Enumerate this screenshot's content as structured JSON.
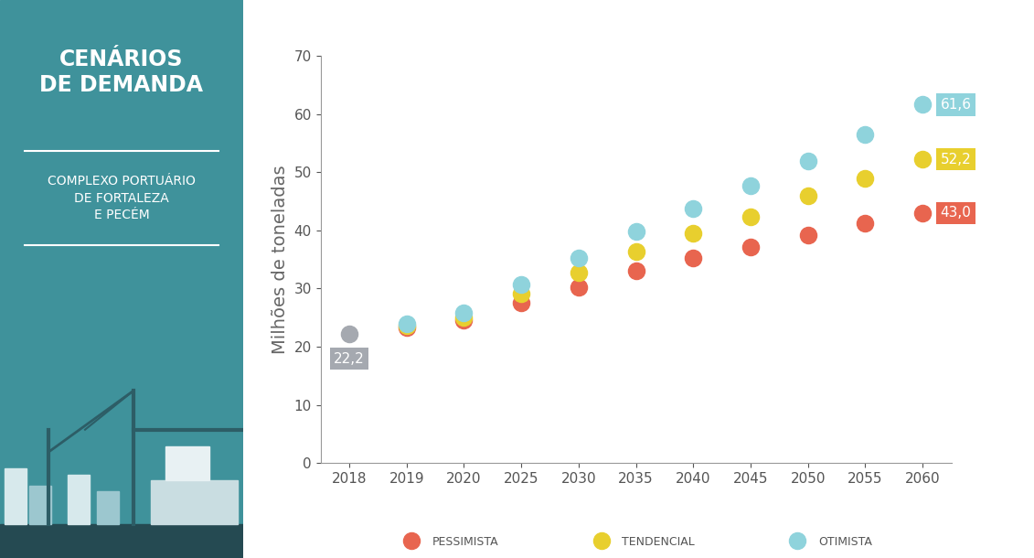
{
  "chart_data": {
    "type": "scatter",
    "ylabel": "Milhões de toneladas",
    "categories": [
      "2018",
      "2019",
      "2020",
      "2025",
      "2030",
      "2035",
      "2040",
      "2045",
      "2050",
      "2055",
      "2060"
    ],
    "ylim": [
      0,
      70
    ],
    "yticks": [
      0,
      10,
      20,
      30,
      40,
      50,
      60,
      70
    ],
    "grid": false,
    "legend": "lower center",
    "data_labels": true,
    "marker": "circle",
    "series": [
      {
        "color": "#a5a9b0",
        "values": [
          22.2,
          null,
          null,
          null,
          null,
          null,
          null,
          null,
          null,
          null,
          null
        ],
        "value_labels": [
          "22,2",
          null,
          null,
          null,
          null,
          null,
          null,
          null,
          null,
          null,
          null
        ]
      },
      {
        "name": "PESSIMISTA",
        "color": "#e8654f",
        "values": [
          null,
          23.3,
          24.5,
          27.6,
          30.2,
          33.0,
          35.2,
          37.2,
          39.2,
          41.2,
          43.0
        ],
        "value_labels": [
          null,
          null,
          null,
          null,
          null,
          null,
          null,
          null,
          null,
          null,
          "43,0"
        ]
      },
      {
        "name": "TENDENCIAL",
        "color": "#e8cf2e",
        "values": [
          null,
          23.6,
          25.0,
          29.2,
          32.7,
          36.4,
          39.5,
          42.3,
          45.9,
          49.0,
          52.2
        ],
        "value_labels": [
          null,
          null,
          null,
          null,
          null,
          null,
          null,
          null,
          null,
          null,
          "52,2"
        ]
      },
      {
        "name": "OTIMISTA",
        "color": "#8fd3dc",
        "values": [
          null,
          23.9,
          25.8,
          30.7,
          35.2,
          39.8,
          43.8,
          47.7,
          52.0,
          56.5,
          61.6
        ],
        "value_labels": [
          null,
          null,
          null,
          null,
          null,
          null,
          null,
          null,
          null,
          null,
          "61,6"
        ]
      }
    ]
  },
  "panel": {
    "title": "CENÁRIOS\nDE DEMANDA",
    "subtitle": "COMPLEXO PORTUÁRIO\nDE FORTALEZA\nE PECÉM"
  }
}
